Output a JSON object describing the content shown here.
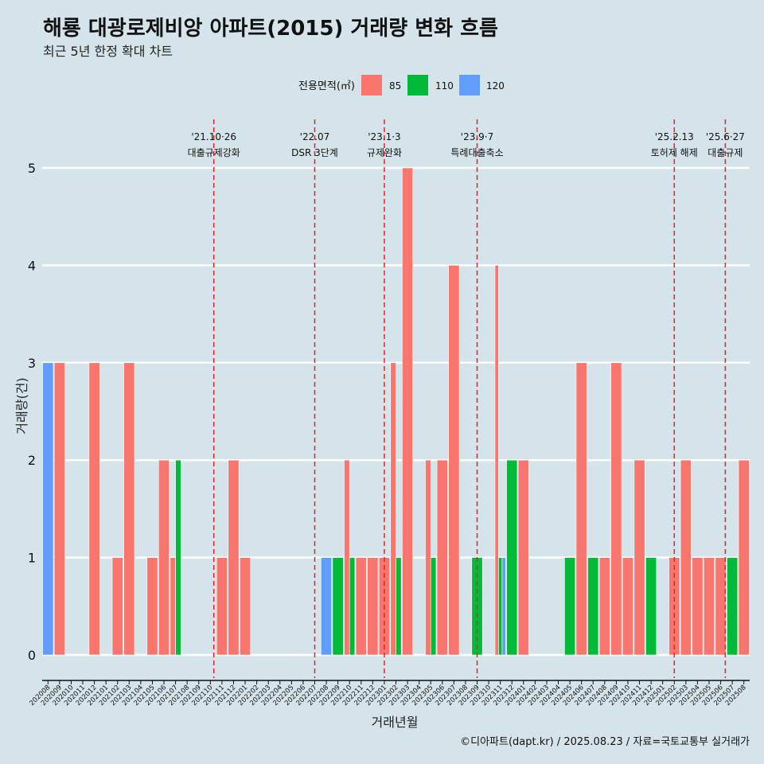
{
  "title": "해룡 대광로제비앙 아파트(2015) 거래량 변화 흐름",
  "subtitle": "최근 5년 한정 확대 차트",
  "caption": "©디아파트(dapt.kr) / 2025.08.23 / 자료=국토교통부 실거래가",
  "colors": {
    "85": "#f8766d",
    "110": "#00ba38",
    "120": "#619cff",
    "background": "#d5e3ea",
    "event_line": "#e8201e"
  },
  "chart_data": {
    "type": "bar",
    "xlabel": "거래년월",
    "ylabel": "거래량(건)",
    "ylim": [
      0,
      5
    ],
    "yticks": [
      0,
      1,
      2,
      3,
      4,
      5
    ],
    "legend": {
      "title": "전용면적(㎡)",
      "entries": [
        "85",
        "110",
        "120"
      ],
      "position": "top"
    },
    "categories": [
      "202008",
      "202009",
      "202010",
      "202011",
      "202012",
      "202101",
      "202102",
      "202103",
      "202104",
      "202105",
      "202106",
      "202107",
      "202108",
      "202109",
      "202110",
      "202111",
      "202112",
      "202201",
      "202202",
      "202203",
      "202204",
      "202205",
      "202206",
      "202207",
      "202208",
      "202209",
      "202210",
      "202211",
      "202212",
      "202301",
      "202302",
      "202303",
      "202304",
      "202305",
      "202306",
      "202307",
      "202308",
      "202309",
      "202310",
      "202311",
      "202312",
      "202401",
      "202402",
      "202403",
      "202404",
      "202405",
      "202406",
      "202407",
      "202408",
      "202409",
      "202410",
      "202411",
      "202412",
      "202501",
      "202502",
      "202503",
      "202504",
      "202505",
      "202506",
      "202507",
      "202508"
    ],
    "series": [
      {
        "name": "85",
        "values": [
          0,
          3,
          0,
          0,
          3,
          0,
          1,
          3,
          0,
          1,
          2,
          1,
          0,
          0,
          0,
          1,
          2,
          1,
          0,
          0,
          0,
          0,
          0,
          0,
          0,
          0,
          2,
          1,
          1,
          1,
          3,
          5,
          0,
          2,
          2,
          4,
          0,
          0,
          0,
          4,
          0,
          2,
          0,
          0,
          0,
          0,
          3,
          0,
          1,
          3,
          1,
          2,
          0,
          0,
          1,
          2,
          1,
          1,
          1,
          0,
          2
        ]
      },
      {
        "name": "110",
        "values": [
          0,
          0,
          0,
          0,
          0,
          0,
          0,
          0,
          0,
          0,
          0,
          2,
          0,
          0,
          0,
          0,
          0,
          0,
          0,
          0,
          0,
          0,
          0,
          0,
          0,
          1,
          1,
          0,
          0,
          0,
          1,
          0,
          0,
          1,
          0,
          0,
          0,
          1,
          0,
          1,
          2,
          0,
          0,
          0,
          0,
          1,
          0,
          1,
          0,
          0,
          0,
          0,
          1,
          0,
          0,
          0,
          0,
          0,
          0,
          1,
          0
        ]
      },
      {
        "name": "120",
        "values": [
          3,
          0,
          0,
          0,
          0,
          0,
          0,
          0,
          0,
          0,
          0,
          0,
          0,
          0,
          0,
          0,
          0,
          0,
          0,
          0,
          0,
          0,
          0,
          0,
          1,
          0,
          0,
          0,
          0,
          0,
          0,
          0,
          0,
          0,
          0,
          0,
          0,
          0,
          0,
          1,
          0,
          0,
          0,
          0,
          0,
          0,
          0,
          0,
          0,
          0,
          0,
          0,
          0,
          0,
          0,
          0,
          0,
          0,
          0,
          0,
          0
        ]
      }
    ],
    "events": [
      {
        "date": "'21.10·26",
        "label": "대출규제강화",
        "month": "202110",
        "offset": 0.8
      },
      {
        "date": "'22.07",
        "label": "DSR 3단계",
        "month": "202207",
        "offset": 0.5
      },
      {
        "date": "'23.1·3",
        "label": "규제완화",
        "month": "202301",
        "offset": 0.5
      },
      {
        "date": "'23.9·7",
        "label": "특례대출축소",
        "month": "202309",
        "offset": 0.5
      },
      {
        "date": "'25.2.13",
        "label": "토허제 해제",
        "month": "202502",
        "offset": 0.5
      },
      {
        "date": "'25.6·27",
        "label": "대출규제",
        "month": "202506",
        "offset": 0.9
      }
    ]
  }
}
